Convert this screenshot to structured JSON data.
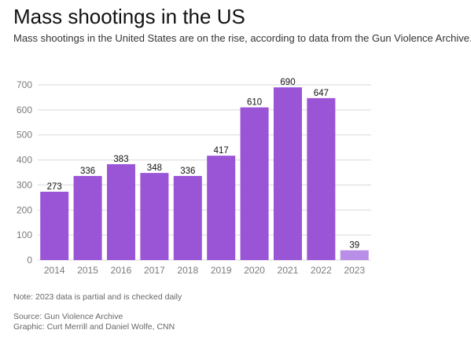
{
  "title": "Mass shootings in the US",
  "subtitle": "Mass shootings in the United States are on the rise, according to data from the Gun Violence Archive.",
  "note": "Note: 2023 data is partial and is checked daily",
  "source": "Source: Gun Violence Archive",
  "credit": "Graphic: Curt Merrill and Daniel Wolfe, CNN",
  "colors": {
    "bar": "#9a54d6",
    "bar_partial": "#b98ee6",
    "grid": "#d9d9d9",
    "axis_text": "#7a7a7a"
  },
  "chart_data": {
    "type": "bar",
    "categories": [
      "2014",
      "2015",
      "2016",
      "2017",
      "2018",
      "2019",
      "2020",
      "2021",
      "2022",
      "2023"
    ],
    "values": [
      273,
      336,
      383,
      348,
      336,
      417,
      610,
      690,
      647,
      39
    ],
    "value_labels": [
      "273",
      "336",
      "383",
      "348",
      "336",
      "417",
      "610",
      "690",
      "647",
      "39"
    ],
    "partial": [
      false,
      false,
      false,
      false,
      false,
      false,
      false,
      false,
      false,
      true
    ],
    "ylim": [
      0,
      700
    ],
    "yticks": [
      0,
      100,
      200,
      300,
      400,
      500,
      600,
      700
    ],
    "ytick_labels": [
      "0",
      "100",
      "200",
      "300",
      "400",
      "500",
      "600",
      "700"
    ],
    "grid": true,
    "xlabel": "",
    "ylabel": ""
  }
}
